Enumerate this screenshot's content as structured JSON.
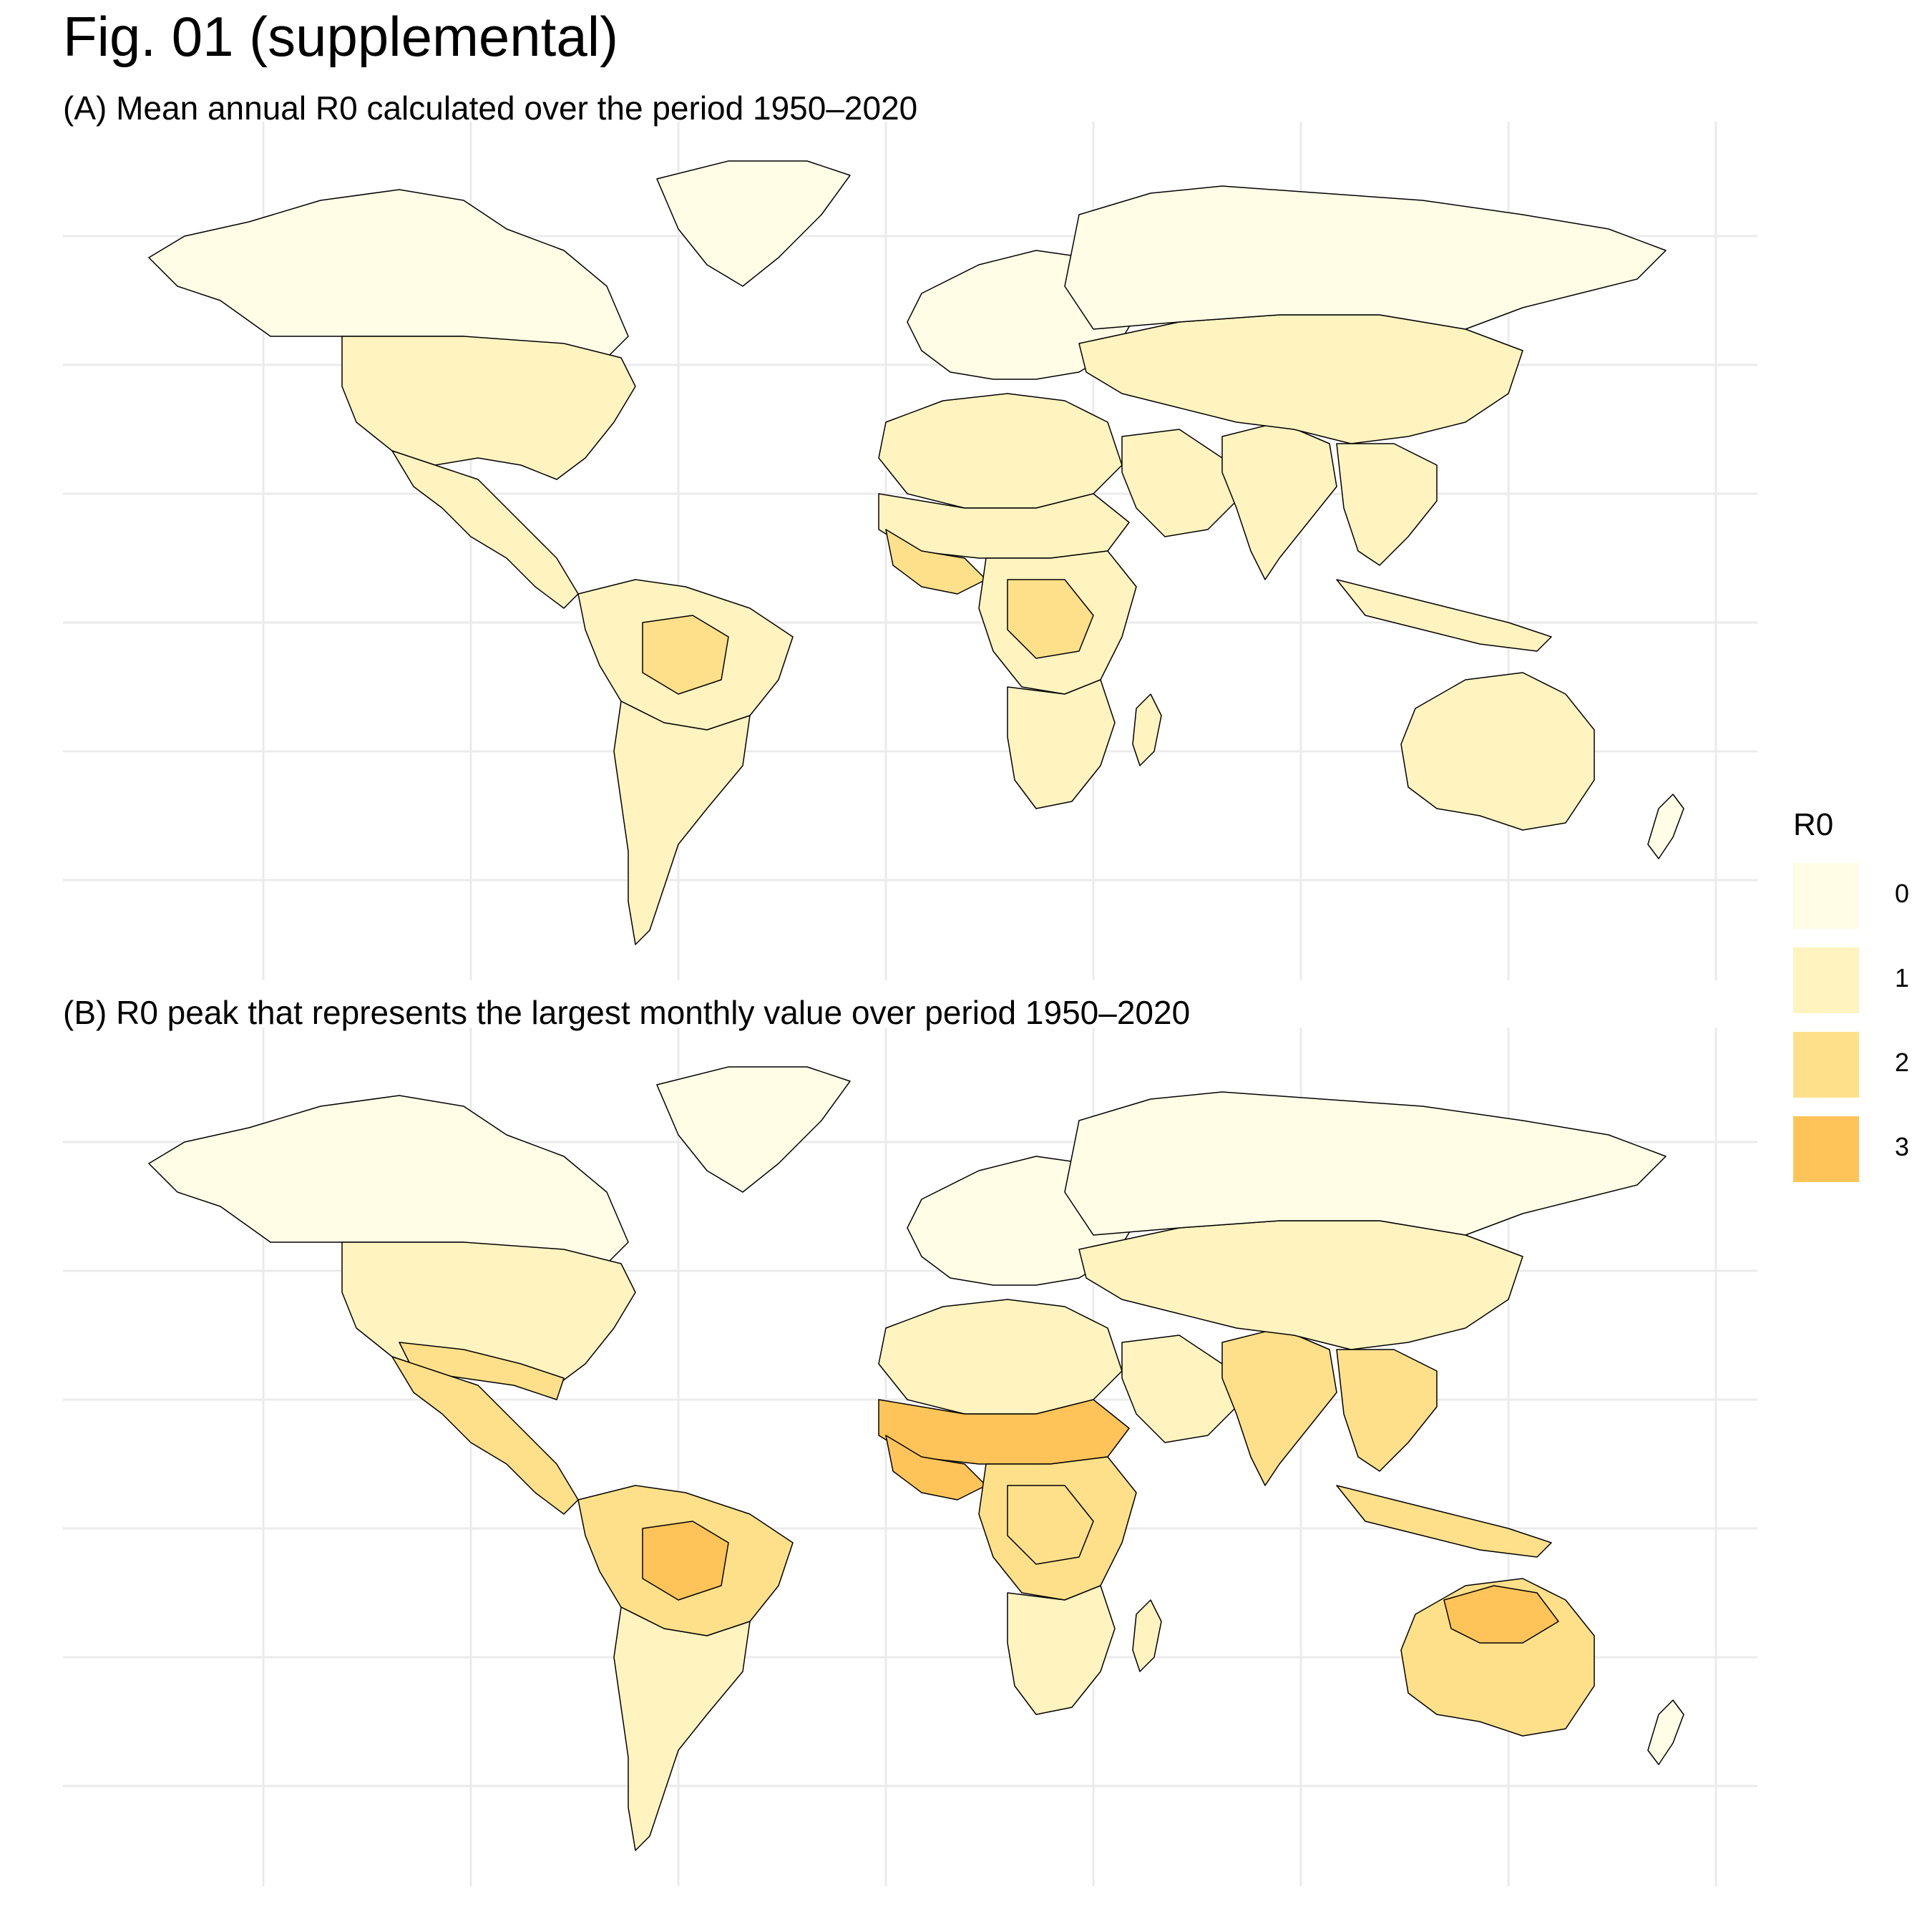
{
  "figure": {
    "title": "Fig. 01 (supplemental)"
  },
  "panels": [
    {
      "id": "A",
      "title": "(A) Mean annual R0 calculated over the period 1950–2020",
      "regions": [
        {
          "name": "north-america-north",
          "level": 0
        },
        {
          "name": "greenland",
          "level": 0
        },
        {
          "name": "usa",
          "level": 1
        },
        {
          "name": "mexico-central-america",
          "level": 1
        },
        {
          "name": "south-america-north",
          "level": 1
        },
        {
          "name": "amazon-core",
          "level": 2
        },
        {
          "name": "south-america-south",
          "level": 1
        },
        {
          "name": "europe",
          "level": 0
        },
        {
          "name": "north-africa",
          "level": 1
        },
        {
          "name": "sahel",
          "level": 1
        },
        {
          "name": "west-africa-coast",
          "level": 2
        },
        {
          "name": "central-africa",
          "level": 1
        },
        {
          "name": "central-africa-core",
          "level": 2
        },
        {
          "name": "southern-africa",
          "level": 1
        },
        {
          "name": "madagascar",
          "level": 1
        },
        {
          "name": "arabia",
          "level": 1
        },
        {
          "name": "india",
          "level": 1
        },
        {
          "name": "china-central-asia",
          "level": 1
        },
        {
          "name": "southeast-asia",
          "level": 1
        },
        {
          "name": "indonesia",
          "level": 1
        },
        {
          "name": "russia-siberia",
          "level": 0
        },
        {
          "name": "australia",
          "level": 1
        },
        {
          "name": "new-zealand",
          "level": 0
        }
      ]
    },
    {
      "id": "B",
      "title": "(B) R0 peak that represents the largest monthly value over period 1950–2020",
      "regions": [
        {
          "name": "north-america-north",
          "level": 0
        },
        {
          "name": "greenland",
          "level": 0
        },
        {
          "name": "usa",
          "level": 1
        },
        {
          "name": "usa-south",
          "level": 2
        },
        {
          "name": "mexico-central-america",
          "level": 2
        },
        {
          "name": "south-america-north",
          "level": 2
        },
        {
          "name": "amazon-core",
          "level": 3
        },
        {
          "name": "south-america-south",
          "level": 1
        },
        {
          "name": "europe",
          "level": 0
        },
        {
          "name": "north-africa",
          "level": 1
        },
        {
          "name": "sahel",
          "level": 3
        },
        {
          "name": "west-africa-coast",
          "level": 3
        },
        {
          "name": "central-africa",
          "level": 2
        },
        {
          "name": "central-africa-core",
          "level": 2
        },
        {
          "name": "southern-africa",
          "level": 1
        },
        {
          "name": "madagascar",
          "level": 1
        },
        {
          "name": "arabia",
          "level": 1
        },
        {
          "name": "india",
          "level": 2
        },
        {
          "name": "china-central-asia",
          "level": 1
        },
        {
          "name": "southeast-asia",
          "level": 2
        },
        {
          "name": "indonesia",
          "level": 2
        },
        {
          "name": "russia-siberia",
          "level": 0
        },
        {
          "name": "australia",
          "level": 2
        },
        {
          "name": "australia-north",
          "level": 3
        },
        {
          "name": "new-zealand",
          "level": 0
        }
      ]
    }
  ],
  "legend": {
    "title": "R0",
    "items": [
      {
        "label": "0",
        "color": "#fffde6"
      },
      {
        "label": "1",
        "color": "#fff3c0"
      },
      {
        "label": "2",
        "color": "#ffe08a"
      },
      {
        "label": "3",
        "color": "#ffc459"
      }
    ]
  },
  "colors": {
    "grid": "#ebebeb",
    "border": "#000000",
    "background": "#ffffff"
  }
}
